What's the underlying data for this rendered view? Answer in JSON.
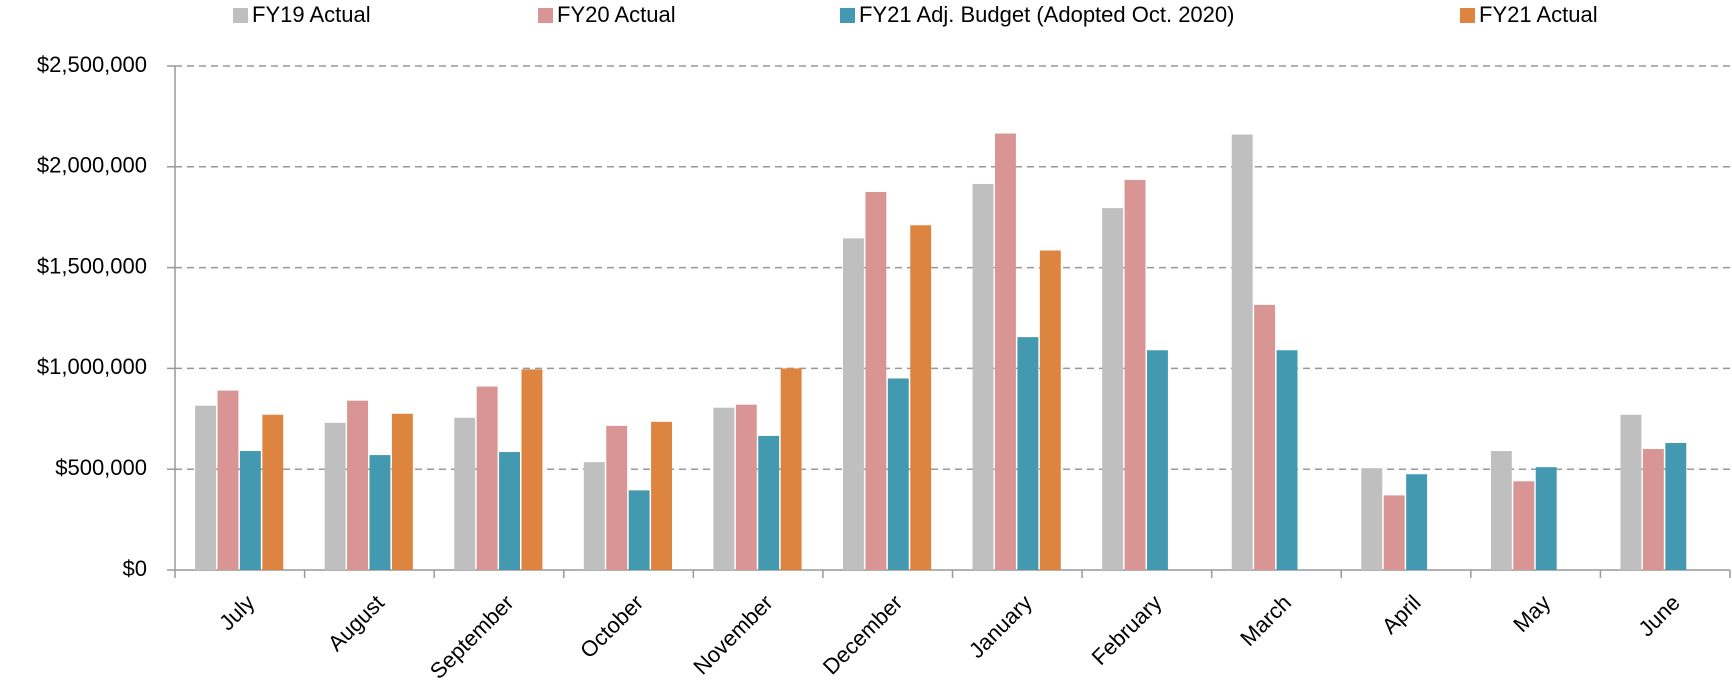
{
  "chart_data": {
    "type": "bar",
    "categories": [
      "July",
      "August",
      "September",
      "October",
      "November",
      "December",
      "January",
      "February",
      "March",
      "April",
      "May",
      "June"
    ],
    "series": [
      {
        "name": "FY19 Actual",
        "color": "#bfbfbf",
        "values": [
          815000,
          730000,
          755000,
          535000,
          805000,
          1645000,
          1915000,
          1795000,
          2160000,
          505000,
          590000,
          770000
        ]
      },
      {
        "name": "FY20 Actual",
        "color": "#d99594",
        "values": [
          890000,
          840000,
          910000,
          715000,
          820000,
          1875000,
          2165000,
          1935000,
          1315000,
          370000,
          440000,
          600000
        ]
      },
      {
        "name": "FY21 Adj. Budget (Adopted Oct. 2020)",
        "color": "#4299b0",
        "values": [
          590000,
          570000,
          585000,
          395000,
          665000,
          950000,
          1155000,
          1090000,
          1090000,
          475000,
          510000,
          630000
        ]
      },
      {
        "name": "FY21 Actual",
        "color": "#dd8540",
        "values": [
          770000,
          775000,
          995000,
          735000,
          1000000,
          1710000,
          1585000,
          null,
          null,
          null,
          null,
          null
        ]
      }
    ],
    "ylim": [
      0,
      2500000
    ],
    "yticks": [
      {
        "value": 0,
        "label": "$0"
      },
      {
        "value": 500000,
        "label": "$500,000"
      },
      {
        "value": 1000000,
        "label": "$1,000,000"
      },
      {
        "value": 1500000,
        "label": "$1,500,000"
      },
      {
        "value": 2000000,
        "label": "$2,000,000"
      },
      {
        "value": 2500000,
        "label": "$2,500,000"
      }
    ],
    "grid": true,
    "legend": "top"
  }
}
